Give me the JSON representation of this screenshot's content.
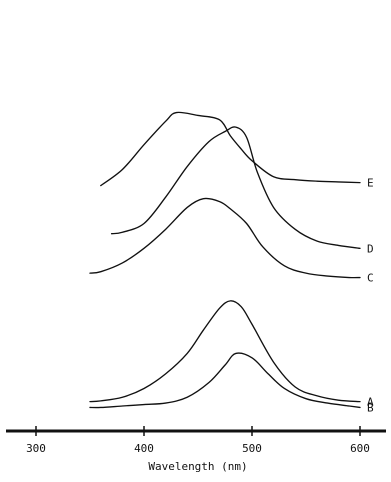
{
  "chart_data": {
    "type": "line",
    "title": "",
    "xlabel": "Wavelength (nm)",
    "ylabel": "",
    "xlim": [
      260,
      625
    ],
    "xticks": [
      300,
      400,
      500,
      600
    ],
    "xtick_labels": [
      "300",
      "400",
      "500",
      "600"
    ],
    "grid": false,
    "line_color": "#111111",
    "series": [
      {
        "name": "A",
        "x": [
          350,
          360,
          380,
          400,
          420,
          440,
          455,
          470,
          480,
          490,
          500,
          520,
          540,
          560,
          580,
          600
        ],
        "y": [
          0.03,
          0.035,
          0.06,
          0.12,
          0.22,
          0.36,
          0.52,
          0.67,
          0.72,
          0.68,
          0.56,
          0.3,
          0.13,
          0.07,
          0.04,
          0.03
        ]
      },
      {
        "name": "B",
        "x": [
          350,
          360,
          380,
          400,
          420,
          440,
          460,
          475,
          485,
          500,
          515,
          530,
          550,
          570,
          590,
          600
        ],
        "y": [
          -0.01,
          -0.01,
          0.0,
          0.01,
          0.02,
          0.06,
          0.16,
          0.28,
          0.36,
          0.33,
          0.22,
          0.12,
          0.05,
          0.02,
          0.0,
          -0.01
        ]
      },
      {
        "name": "C",
        "x": [
          350,
          360,
          380,
          400,
          420,
          440,
          455,
          470,
          480,
          495,
          510,
          530,
          550,
          570,
          590,
          600
        ],
        "y": [
          0.91,
          0.92,
          0.98,
          1.08,
          1.21,
          1.36,
          1.42,
          1.4,
          1.35,
          1.25,
          1.09,
          0.96,
          0.91,
          0.89,
          0.88,
          0.88
        ]
      },
      {
        "name": "D",
        "x": [
          370,
          380,
          400,
          420,
          440,
          460,
          475,
          485,
          495,
          505,
          520,
          540,
          560,
          580,
          600
        ],
        "y": [
          1.18,
          1.19,
          1.25,
          1.43,
          1.64,
          1.81,
          1.88,
          1.91,
          1.84,
          1.6,
          1.36,
          1.21,
          1.13,
          1.1,
          1.08
        ]
      },
      {
        "name": "E",
        "x": [
          360,
          380,
          400,
          420,
          430,
          450,
          470,
          480,
          490,
          500,
          520,
          540,
          560,
          580,
          600
        ],
        "y": [
          1.51,
          1.62,
          1.79,
          1.95,
          2.01,
          1.99,
          1.96,
          1.85,
          1.76,
          1.68,
          1.57,
          1.55,
          1.54,
          1.535,
          1.53
        ]
      }
    ]
  }
}
